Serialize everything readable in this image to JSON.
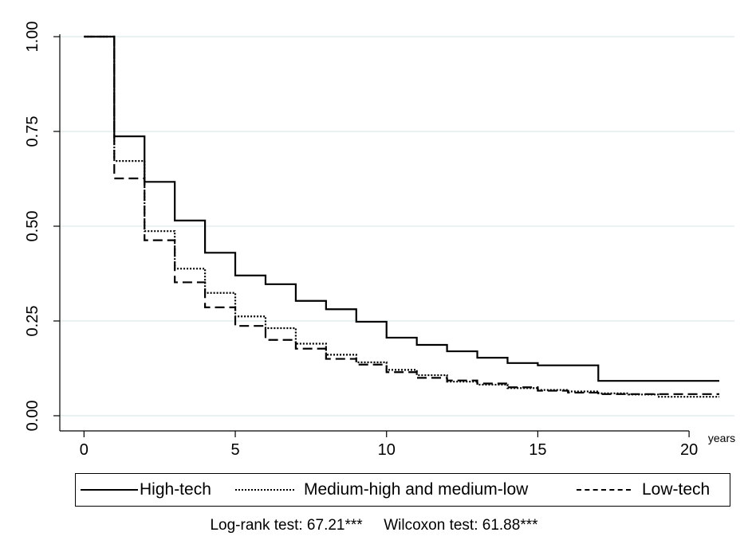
{
  "chart_data": {
    "type": "line",
    "step": true,
    "xlabel": "years",
    "ylabel": "",
    "xlim": [
      -0.8,
      21.5
    ],
    "ylim": [
      -0.04,
      1.04
    ],
    "x_ticks": [
      0,
      5,
      10,
      15,
      20
    ],
    "x_tick_labels": [
      "0",
      "5",
      "10",
      "15",
      "20"
    ],
    "y_ticks": [
      0,
      0.25,
      0.5,
      0.75,
      1
    ],
    "y_tick_labels": [
      "0.00",
      "0.25",
      "0.50",
      "0.75",
      "1.00"
    ],
    "grid": "horizontal",
    "legend_position": "bottom",
    "series": [
      {
        "name": "High-tech",
        "dash": "solid",
        "x": [
          0,
          1,
          2,
          3,
          4,
          5,
          6,
          7,
          8,
          9,
          10,
          11,
          12,
          13,
          14,
          15,
          16,
          17,
          21
        ],
        "y": [
          1.0,
          0.737,
          0.617,
          0.515,
          0.43,
          0.37,
          0.347,
          0.303,
          0.281,
          0.248,
          0.206,
          0.187,
          0.17,
          0.153,
          0.139,
          0.133,
          0.133,
          0.092,
          0.092
        ]
      },
      {
        "name": "Medium-high and medium-low",
        "dash": "dotted",
        "x": [
          0,
          1,
          2,
          3,
          4,
          5,
          6,
          7,
          8,
          9,
          10,
          11,
          12,
          13,
          14,
          15,
          16,
          17,
          18,
          19,
          21
        ],
        "y": [
          1.0,
          0.672,
          0.487,
          0.388,
          0.324,
          0.262,
          0.231,
          0.19,
          0.161,
          0.141,
          0.121,
          0.107,
          0.09,
          0.082,
          0.073,
          0.068,
          0.064,
          0.059,
          0.056,
          0.05,
          0.05
        ]
      },
      {
        "name": "Low-tech",
        "dash": "dashed",
        "x": [
          0,
          1,
          2,
          3,
          4,
          5,
          6,
          7,
          8,
          9,
          10,
          11,
          12,
          13,
          14,
          15,
          16,
          17,
          21
        ],
        "y": [
          1.0,
          0.626,
          0.463,
          0.352,
          0.286,
          0.237,
          0.2,
          0.177,
          0.15,
          0.135,
          0.115,
          0.1,
          0.093,
          0.085,
          0.075,
          0.066,
          0.061,
          0.057,
          0.057
        ]
      }
    ]
  },
  "legend": {
    "items": [
      "High-tech",
      "Medium-high and medium-low",
      "Low-tech"
    ]
  },
  "note": {
    "logrank": "Log-rank test: 67.21***",
    "wilcoxon": "Wilcoxon test: 61.88***"
  }
}
